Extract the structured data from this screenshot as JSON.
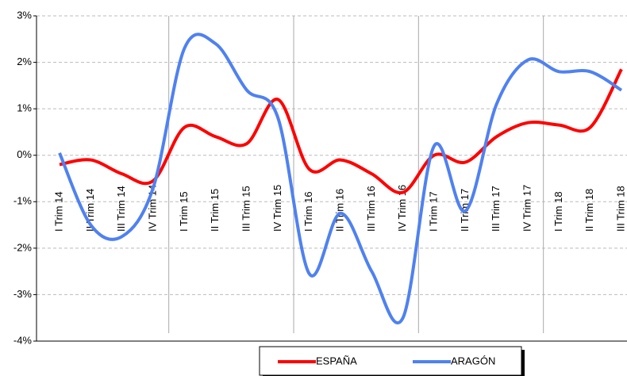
{
  "chart_data": {
    "type": "line",
    "categories": [
      "I Trim 14",
      "II Trim 14",
      "III Trim 14",
      "IV Trim 14",
      "I Trim 15",
      "II Trim 15",
      "III Trim 15",
      "IV Trim 15",
      "I Trim 16",
      "II Trim 16",
      "III Trim 16",
      "IV Trim 16",
      "I Trim 17",
      "II Trim 17",
      "III Trim 17",
      "IV Trim 17",
      "I Trim 18",
      "II Trim 18",
      "III Trim 18"
    ],
    "series": [
      {
        "name": "ESPAÑA",
        "color": "#ff0000",
        "values": [
          -0.2,
          -0.1,
          -0.4,
          -0.55,
          0.6,
          0.4,
          0.25,
          1.2,
          -0.3,
          -0.1,
          -0.4,
          -0.8,
          0,
          -0.15,
          0.4,
          0.7,
          0.65,
          0.6,
          1.85
        ]
      },
      {
        "name": "ARAGÓN",
        "color": "#4f81f0",
        "values": [
          0.05,
          -1.5,
          -1.75,
          -0.7,
          2.3,
          2.4,
          1.4,
          0.8,
          -2.55,
          -1.25,
          -2.5,
          -3.5,
          0.2,
          -1.2,
          1.1,
          2.05,
          1.8,
          1.8,
          1.4
        ]
      }
    ],
    "ylim": [
      -4,
      3
    ],
    "yticks": [
      {
        "value": -4,
        "label": "-4%"
      },
      {
        "value": -3,
        "label": "-3%"
      },
      {
        "value": -2,
        "label": "-2%"
      },
      {
        "value": -1,
        "label": "-1%"
      },
      {
        "value": 0,
        "label": "0%"
      },
      {
        "value": 1,
        "label": "1%"
      },
      {
        "value": 2,
        "label": "2%"
      },
      {
        "value": 3,
        "label": "3%"
      }
    ],
    "grid": true
  }
}
